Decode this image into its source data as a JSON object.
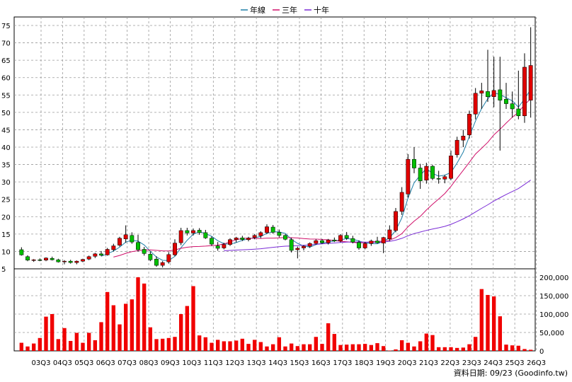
{
  "chart_data": {
    "type": "candlestick_with_volume",
    "legend": [
      {
        "label": "年線",
        "color": "#1e7fa8"
      },
      {
        "label": "三年",
        "color": "#d0106a"
      },
      {
        "label": "十年",
        "color": "#7a2bd6"
      }
    ],
    "price_axis": {
      "min": 5,
      "max": 75,
      "ticks": [
        5,
        10,
        15,
        20,
        25,
        30,
        35,
        40,
        45,
        50,
        55,
        60,
        65,
        70,
        75
      ]
    },
    "volume_axis": {
      "min": 0,
      "max": 200000,
      "ticks": [
        0,
        50000,
        100000,
        150000,
        200000
      ],
      "tick_labels": [
        "0",
        "50,000",
        "100,000",
        "150,000",
        "200,000"
      ]
    },
    "x_labels": [
      "03Q3",
      "04Q3",
      "05Q3",
      "06Q3",
      "07Q3",
      "08Q3",
      "09Q3",
      "10Q3",
      "11Q3",
      "12Q3",
      "13Q3",
      "14Q3",
      "15Q3",
      "16Q3",
      "17Q3",
      "18Q3",
      "19Q3",
      "20Q3",
      "21Q3",
      "22Q3",
      "23Q3",
      "24Q3",
      "25Q3",
      "26Q3"
    ],
    "candles": [
      [
        10.5,
        11.2,
        8.8,
        9.0
      ],
      [
        8.5,
        8.9,
        7.2,
        7.5
      ],
      [
        7.4,
        7.8,
        7.0,
        7.6
      ],
      [
        7.6,
        8.0,
        7.2,
        7.4
      ],
      [
        7.5,
        8.3,
        7.2,
        8.1
      ],
      [
        8.0,
        8.5,
        7.4,
        7.6
      ],
      [
        7.6,
        7.9,
        6.8,
        7.0
      ],
      [
        7.0,
        7.5,
        6.3,
        7.2
      ],
      [
        7.2,
        7.6,
        6.5,
        6.8
      ],
      [
        6.8,
        7.4,
        6.3,
        7.2
      ],
      [
        7.2,
        7.9,
        6.9,
        7.7
      ],
      [
        7.8,
        8.8,
        7.5,
        8.5
      ],
      [
        8.6,
        9.6,
        8.1,
        9.3
      ],
      [
        9.3,
        10.1,
        8.6,
        8.9
      ],
      [
        9.0,
        11.0,
        8.8,
        10.6
      ],
      [
        10.5,
        12.2,
        10.0,
        11.6
      ],
      [
        11.8,
        14.2,
        11.4,
        13.8
      ],
      [
        13.6,
        17.5,
        12.5,
        14.8
      ],
      [
        14.6,
        15.5,
        12.2,
        12.7
      ],
      [
        12.6,
        14.8,
        10.0,
        10.5
      ],
      [
        10.6,
        11.3,
        8.8,
        9.4
      ],
      [
        9.2,
        10.0,
        7.2,
        7.6
      ],
      [
        7.8,
        8.6,
        5.6,
        6.0
      ],
      [
        6.0,
        7.2,
        5.4,
        6.8
      ],
      [
        7.0,
        9.8,
        6.5,
        9.1
      ],
      [
        9.0,
        13.5,
        8.6,
        12.4
      ],
      [
        12.5,
        16.8,
        11.8,
        16.0
      ],
      [
        16.0,
        16.8,
        14.6,
        15.3
      ],
      [
        15.3,
        16.6,
        14.6,
        16.0
      ],
      [
        16.1,
        16.7,
        14.8,
        15.4
      ],
      [
        15.4,
        16.2,
        13.6,
        13.9
      ],
      [
        13.8,
        14.3,
        11.6,
        12.1
      ],
      [
        11.6,
        12.7,
        10.2,
        10.9
      ],
      [
        11.0,
        12.5,
        10.6,
        12.0
      ],
      [
        12.0,
        13.8,
        11.6,
        13.4
      ],
      [
        13.4,
        14.2,
        12.6,
        13.9
      ],
      [
        13.9,
        14.5,
        13.0,
        13.4
      ],
      [
        13.4,
        14.2,
        12.9,
        13.8
      ],
      [
        14.0,
        15.0,
        13.5,
        14.6
      ],
      [
        14.5,
        15.8,
        13.8,
        15.4
      ],
      [
        15.4,
        17.8,
        15.0,
        17.1
      ],
      [
        17.0,
        17.6,
        15.1,
        15.5
      ],
      [
        15.5,
        16.3,
        14.0,
        14.6
      ],
      [
        14.6,
        15.0,
        13.2,
        13.5
      ],
      [
        13.4,
        13.9,
        9.7,
        10.3
      ],
      [
        10.5,
        11.4,
        8.0,
        10.9
      ],
      [
        11.0,
        11.8,
        10.3,
        11.5
      ],
      [
        11.5,
        12.6,
        11.0,
        12.3
      ],
      [
        12.3,
        13.5,
        11.9,
        13.1
      ],
      [
        13.1,
        13.6,
        12.2,
        12.5
      ],
      [
        12.5,
        13.6,
        12.0,
        13.3
      ],
      [
        13.3,
        14.0,
        12.7,
        13.0
      ],
      [
        13.0,
        15.0,
        12.6,
        14.6
      ],
      [
        14.6,
        15.6,
        13.3,
        13.8
      ],
      [
        13.7,
        14.5,
        12.3,
        12.7
      ],
      [
        12.6,
        13.2,
        10.5,
        11.0
      ],
      [
        11.0,
        12.7,
        10.6,
        12.3
      ],
      [
        12.3,
        13.4,
        11.6,
        13.0
      ],
      [
        13.0,
        14.2,
        12.3,
        12.5
      ],
      [
        12.4,
        14.2,
        9.5,
        14.0
      ],
      [
        13.6,
        17.5,
        13.0,
        16.2
      ],
      [
        16.0,
        22.5,
        15.5,
        21.5
      ],
      [
        21.5,
        28.5,
        20.5,
        27.0
      ],
      [
        26.5,
        38.0,
        25.5,
        36.5
      ],
      [
        36.5,
        40.0,
        32.5,
        34.0
      ],
      [
        34.0,
        35.2,
        28.0,
        30.3
      ],
      [
        30.5,
        35.5,
        29.5,
        34.5
      ],
      [
        34.5,
        34.9,
        30.5,
        31.0
      ],
      [
        31.0,
        33.2,
        29.5,
        30.8
      ],
      [
        30.8,
        32.0,
        29.6,
        31.5
      ],
      [
        31.0,
        39.0,
        30.5,
        37.5
      ],
      [
        37.8,
        43.0,
        37.0,
        42.0
      ],
      [
        42.0,
        45.0,
        40.0,
        43.2
      ],
      [
        43.5,
        50.5,
        42.5,
        49.5
      ],
      [
        49.5,
        57.0,
        48.0,
        55.5
      ],
      [
        55.5,
        58.5,
        51.0,
        56.2
      ],
      [
        56.0,
        68.0,
        53.0,
        54.5
      ],
      [
        54.5,
        66.0,
        51.5,
        56.3
      ],
      [
        56.5,
        66.0,
        39.0,
        53.5
      ],
      [
        53.8,
        58.5,
        51.0,
        52.5
      ],
      [
        52.5,
        56.0,
        48.5,
        51.0
      ],
      [
        51.0,
        62.0,
        48.0,
        49.0
      ],
      [
        49.0,
        67.0,
        47.0,
        63.0
      ],
      [
        53.5,
        74.5,
        48.5,
        63.5
      ]
    ],
    "ma_year": [
      [
        null,
        null
      ],
      [
        null,
        null
      ],
      [
        null,
        null
      ],
      [
        null,
        null
      ],
      [
        null,
        null
      ],
      [
        null,
        null
      ],
      [
        null,
        null
      ],
      [
        null,
        null
      ],
      [
        null,
        null
      ],
      [
        null,
        null
      ],
      [
        null,
        null
      ],
      [
        null,
        null
      ],
      [
        null,
        null
      ],
      [
        null,
        null
      ],
      [
        null,
        null
      ],
      [
        null,
        null
      ],
      [
        null,
        null
      ],
      [
        null,
        null
      ],
      [
        null,
        null
      ],
      [
        null,
        null
      ],
      [
        null,
        null
      ],
      [
        null,
        null
      ],
      [
        null,
        null
      ],
      [
        null,
        null
      ]
    ],
    "volume": [
      22000,
      12000,
      20000,
      35000,
      93000,
      100000,
      32000,
      62000,
      27000,
      49000,
      22000,
      49000,
      29000,
      78000,
      160000,
      124000,
      72000,
      128000,
      140000,
      210000,
      183000,
      64000,
      32000,
      33000,
      35000,
      38000,
      100000,
      122000,
      176000,
      42000,
      37000,
      22000,
      30000,
      26000,
      26000,
      28000,
      33000,
      19000,
      30000,
      24000,
      12000,
      18000,
      37000,
      12000,
      20000,
      13000,
      18000,
      18000,
      38000,
      19000,
      75000,
      46000,
      16000,
      17000,
      18000,
      18000,
      19000,
      16000,
      21000,
      13000,
      1000,
      4000,
      29000,
      22000,
      12000,
      26000,
      47000,
      43000,
      10000,
      10000,
      10000,
      8000,
      9000,
      18000,
      38000,
      168000,
      152000,
      148000,
      94000,
      17000,
      15000,
      14000,
      5000,
      3000
    ]
  },
  "source_label": "資料日期: 09/23 (Goodinfo.tw)"
}
